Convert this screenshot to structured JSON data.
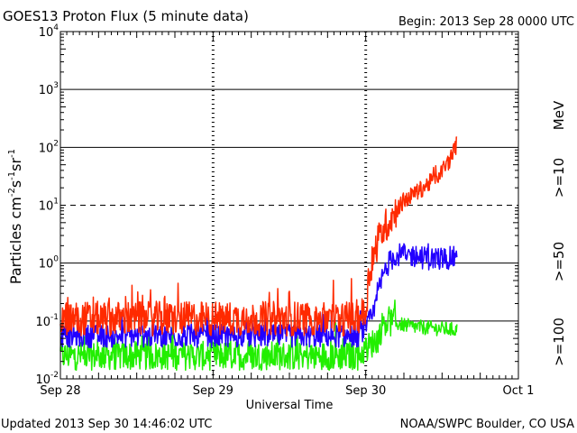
{
  "chart_data": {
    "type": "line",
    "title": "GOES13 Proton Flux (5 minute data)",
    "begin_label": "Begin: 2013 Sep 28 0000 UTC",
    "xlabel": "Universal Time",
    "ylabel": "Particles cm-2s-1sr-1",
    "y_scale": "log",
    "ylim": [
      0.01,
      10000
    ],
    "y_ticks": [
      {
        "exp": "-2",
        "value": 0.01
      },
      {
        "exp": "-1",
        "value": 0.1
      },
      {
        "exp": "0",
        "value": 1
      },
      {
        "exp": "1",
        "value": 10
      },
      {
        "exp": "2",
        "value": 100
      },
      {
        "exp": "3",
        "value": 1000
      },
      {
        "exp": "4",
        "value": 10000
      }
    ],
    "tick_base": "10",
    "x_unit": "days since 2013 Sep 28 0000 UTC",
    "xlim": [
      0,
      3
    ],
    "x_ticks": [
      {
        "label": "Sep 28",
        "value": 0
      },
      {
        "label": "Sep 29",
        "value": 1
      },
      {
        "label": "Sep 30",
        "value": 2
      },
      {
        "label": "Oct 1",
        "value": 3
      }
    ],
    "unit_label": "MeV",
    "series": [
      {
        "name": ">=10",
        "color": "#ff2a00",
        "noise_log": 0.3,
        "x": [
          0,
          0.5,
          1.0,
          1.5,
          1.92,
          2.0,
          2.02,
          2.05,
          2.08,
          2.12,
          2.18,
          2.25,
          2.35,
          2.45,
          2.5,
          2.55,
          2.6
        ],
        "y": [
          0.11,
          0.11,
          0.11,
          0.11,
          0.11,
          0.14,
          0.6,
          1.2,
          2.5,
          4.0,
          7.0,
          12,
          18,
          28,
          40,
          60,
          120
        ]
      },
      {
        "name": ">=50",
        "color": "#2200ff",
        "noise_log": 0.2,
        "x": [
          0,
          0.5,
          1.0,
          1.5,
          1.95,
          2.05,
          2.08,
          2.12,
          2.15,
          2.2,
          2.3,
          2.4,
          2.5,
          2.6
        ],
        "y": [
          0.055,
          0.055,
          0.055,
          0.055,
          0.055,
          0.12,
          0.3,
          0.7,
          1.0,
          1.4,
          1.35,
          1.2,
          1.2,
          1.25
        ]
      },
      {
        "name": ">=100",
        "color": "#22ee00",
        "noise_log": 0.25,
        "x": [
          0,
          0.5,
          1.0,
          1.5,
          1.95,
          2.08,
          2.12,
          2.3,
          2.6
        ],
        "y": [
          0.025,
          0.025,
          0.025,
          0.025,
          0.025,
          0.05,
          0.1,
          0.08,
          0.07
        ]
      }
    ]
  },
  "footer": {
    "updated": "Updated 2013 Sep 30 14:46:02 UTC",
    "source": "NOAA/SWPC Boulder, CO USA"
  }
}
